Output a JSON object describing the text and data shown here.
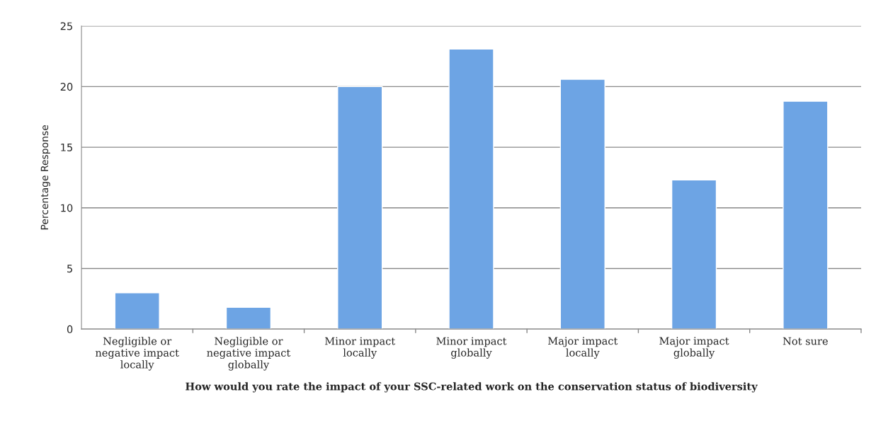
{
  "chart_data": {
    "type": "bar",
    "xlabel": "How would you rate the impact of your SSC-related work on the conservation status of biodiversity",
    "ylabel": "Percentage Response",
    "categories": [
      "Negligible or\nnegative impact\nlocally",
      "Negligible or\nnegative impact\nglobally",
      "Minor impact\nlocally",
      "Minor impact\nglobally",
      "Major impact\nlocally",
      "Major impact\nglobally",
      "Not sure"
    ],
    "values": [
      3.0,
      1.8,
      20.0,
      23.1,
      20.6,
      12.3,
      18.8
    ],
    "color": "#6da4e4",
    "ylim": [
      0,
      25
    ],
    "yticks": [
      0,
      5,
      10,
      15,
      20,
      25
    ],
    "grid": "y"
  }
}
